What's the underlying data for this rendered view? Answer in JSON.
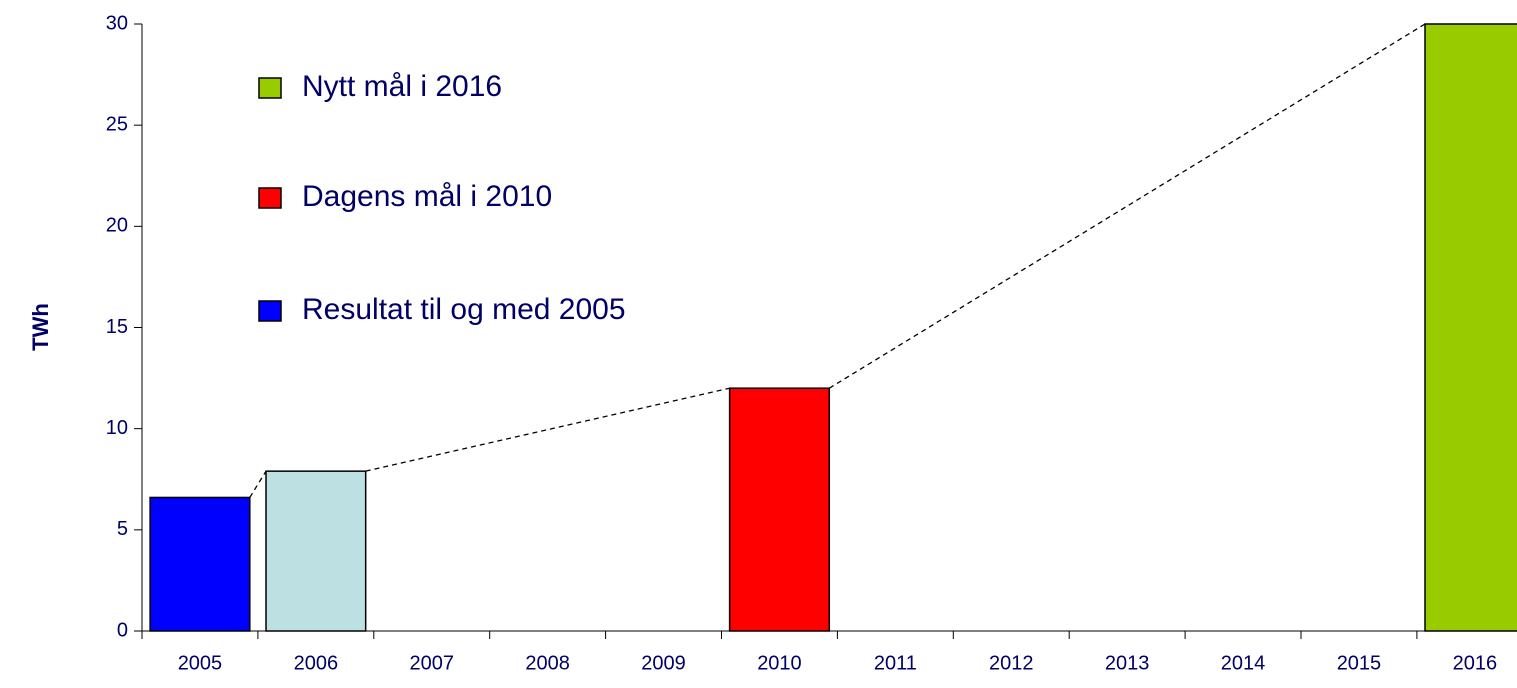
{
  "chart_data": {
    "type": "bar",
    "y_label": "TWh",
    "categories": [
      "2005",
      "2006",
      "2007",
      "2008",
      "2009",
      "2010",
      "2011",
      "2012",
      "2013",
      "2014",
      "2015",
      "2016"
    ],
    "values": [
      6.6,
      7.9,
      null,
      null,
      null,
      12,
      null,
      null,
      null,
      null,
      null,
      30
    ],
    "colors": [
      "#0000ff",
      "#bde0e3",
      null,
      null,
      null,
      "#ff0000",
      null,
      null,
      null,
      null,
      null,
      "#99cc00"
    ],
    "ylim": [
      0,
      30
    ],
    "yticks": [
      0,
      5,
      10,
      15,
      20,
      25,
      30
    ],
    "connector_line": true,
    "legend": [
      {
        "label": "Nytt mål i 2016",
        "color": "#99cc00"
      },
      {
        "label": "Dagens mål i 2010",
        "color": "#ff0000"
      },
      {
        "label": "Resultat til og med 2005",
        "color": "#0000ff"
      }
    ]
  }
}
